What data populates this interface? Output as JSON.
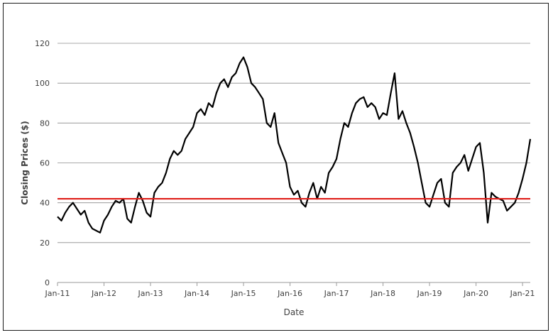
{
  "chart_data": {
    "type": "line",
    "title": "",
    "xlabel": "Date",
    "ylabel": "Closing Prices ($)",
    "ylim": [
      0,
      120
    ],
    "yticks": [
      "0",
      "20",
      "40",
      "60",
      "80",
      "100",
      "120"
    ],
    "xlim": [
      "2011-01",
      "2021-03"
    ],
    "xticks": [
      "Jan-11",
      "Jan-12",
      "Jan-13",
      "Jan-14",
      "Jan-15",
      "Jan-16",
      "Jan-17",
      "Jan-18",
      "Jan-19",
      "Jan-20",
      "Jan-21"
    ],
    "grid": "horizontal",
    "legend": "none",
    "reference_line": {
      "y": 42,
      "color": "#e0201b"
    },
    "series": [
      {
        "color": "#000000",
        "x": [
          "2011-01",
          "2011-02",
          "2011-03",
          "2011-04",
          "2011-05",
          "2011-06",
          "2011-07",
          "2011-08",
          "2011-09",
          "2011-10",
          "2011-11",
          "2011-12",
          "2012-01",
          "2012-02",
          "2012-03",
          "2012-04",
          "2012-05",
          "2012-06",
          "2012-07",
          "2012-08",
          "2012-09",
          "2012-10",
          "2012-11",
          "2012-12",
          "2013-01",
          "2013-02",
          "2013-03",
          "2013-04",
          "2013-05",
          "2013-06",
          "2013-07",
          "2013-08",
          "2013-09",
          "2013-10",
          "2013-11",
          "2013-12",
          "2014-01",
          "2014-02",
          "2014-03",
          "2014-04",
          "2014-05",
          "2014-06",
          "2014-07",
          "2014-08",
          "2014-09",
          "2014-10",
          "2014-11",
          "2014-12",
          "2015-01",
          "2015-02",
          "2015-03",
          "2015-04",
          "2015-05",
          "2015-06",
          "2015-07",
          "2015-08",
          "2015-09",
          "2015-10",
          "2015-11",
          "2015-12",
          "2016-01",
          "2016-02",
          "2016-03",
          "2016-04",
          "2016-05",
          "2016-06",
          "2016-07",
          "2016-08",
          "2016-09",
          "2016-10",
          "2016-11",
          "2016-12",
          "2017-01",
          "2017-02",
          "2017-03",
          "2017-04",
          "2017-05",
          "2017-06",
          "2017-07",
          "2017-08",
          "2017-09",
          "2017-10",
          "2017-11",
          "2017-12",
          "2018-01",
          "2018-02",
          "2018-03",
          "2018-04",
          "2018-05",
          "2018-06",
          "2018-07",
          "2018-08",
          "2018-09",
          "2018-10",
          "2018-11",
          "2018-12",
          "2019-01",
          "2019-02",
          "2019-03",
          "2019-04",
          "2019-05",
          "2019-06",
          "2019-07",
          "2019-08",
          "2019-09",
          "2019-10",
          "2019-11",
          "2019-12",
          "2020-01",
          "2020-02",
          "2020-03",
          "2020-04",
          "2020-05",
          "2020-06",
          "2020-07",
          "2020-08",
          "2020-09",
          "2020-10",
          "2020-11",
          "2020-12",
          "2021-01",
          "2021-02",
          "2021-03"
        ],
        "values": [
          33,
          31,
          35,
          38,
          40,
          37,
          34,
          36,
          30,
          27,
          26,
          25,
          31,
          34,
          38,
          41,
          40,
          42,
          32,
          30,
          38,
          45,
          41,
          35,
          33,
          45,
          48,
          50,
          55,
          62,
          66,
          64,
          66,
          72,
          75,
          78,
          85,
          87,
          84,
          90,
          88,
          95,
          100,
          102,
          98,
          103,
          105,
          110,
          113,
          108,
          100,
          98,
          95,
          92,
          80,
          78,
          85,
          70,
          65,
          60,
          48,
          44,
          46,
          40,
          38,
          45,
          50,
          42,
          48,
          45,
          55,
          58,
          62,
          72,
          80,
          78,
          85,
          90,
          92,
          93,
          88,
          90,
          88,
          82,
          85,
          84,
          95,
          105,
          82,
          86,
          80,
          75,
          68,
          60,
          50,
          40,
          38,
          44,
          50,
          52,
          40,
          38,
          55,
          58,
          60,
          64,
          56,
          62,
          68,
          70,
          55,
          30,
          45,
          43,
          42,
          41,
          36,
          38,
          40,
          45,
          52,
          60,
          72
        ]
      }
    ]
  }
}
